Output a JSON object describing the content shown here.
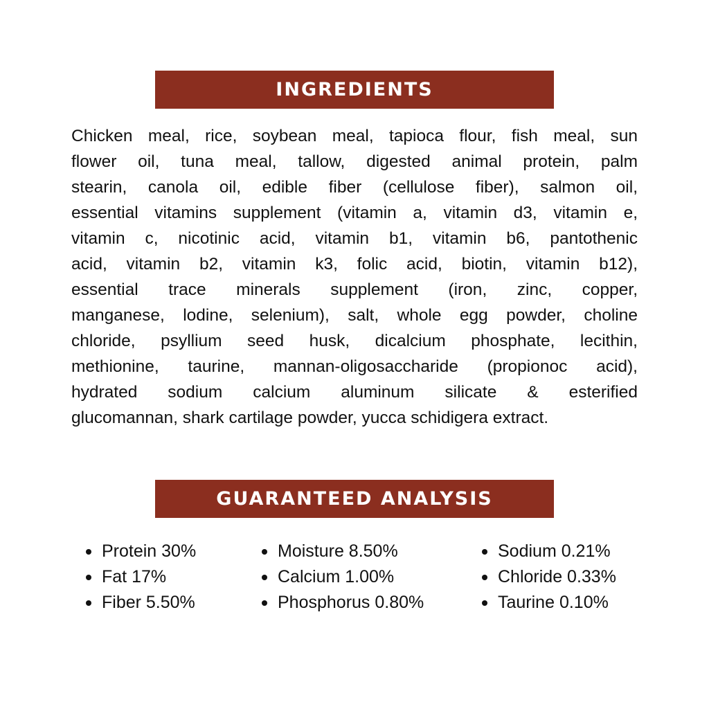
{
  "ingredients": {
    "title": "INGREDIENTS",
    "lines": [
      "Chicken meal, rice, soybean meal, tapioca flour, fish meal, sun",
      "flower oil, tuna meal, tallow, digested animal protein, palm",
      "stearin, canola oil, edible fiber (cellulose fiber), salmon oil,",
      "essential vitamins supplement (vitamin a, vitamin d3, vitamin e,",
      "vitamin c, nicotinic acid, vitamin b1, vitamin b6, pantothenic",
      "acid, vitamin b2, vitamin k3, folic acid, biotin, vitamin b12),",
      "essential trace minerals supplement (iron, zinc, copper,",
      "manganese, lodine, selenium), salt, whole egg powder, choline",
      "chloride, psyllium seed husk, dicalcium phosphate, lecithin,",
      "methionine, taurine, mannan-oligosaccharide (propionoc acid),",
      "hydrated sodium calcium aluminum silicate & esterified",
      "glucomannan, shark cartilage powder, yucca schidigera extract."
    ]
  },
  "analysis": {
    "title": "GUARANTEED ANALYSIS",
    "columns": [
      [
        "Protein 30%",
        "Fat 17%",
        "Fiber 5.50%"
      ],
      [
        "Moisture 8.50%",
        "Calcium 1.00%",
        "Phosphorus 0.80%"
      ],
      [
        "Sodium 0.21%",
        "Chloride 0.33%",
        "Taurine 0.10%"
      ]
    ]
  },
  "colors": {
    "header_bar": "#8b2e1f",
    "text": "#111111"
  }
}
